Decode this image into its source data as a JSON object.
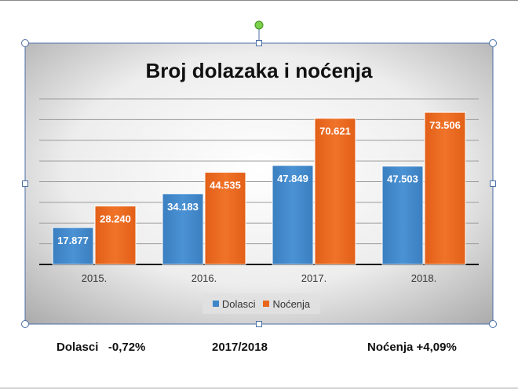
{
  "chart_data": {
    "type": "bar",
    "title": "Broj dolazaka i noćenja",
    "categories": [
      "2015.",
      "2016.",
      "2017.",
      "2018."
    ],
    "series": [
      {
        "name": "Dolasci",
        "color": "#3f86c8",
        "values": [
          17877,
          34183,
          47849,
          47503
        ],
        "labels": [
          "17.877",
          "34.183",
          "47.849",
          "47.503"
        ]
      },
      {
        "name": "Noćenja",
        "color": "#e8661c",
        "values": [
          28240,
          44535,
          70621,
          73506
        ],
        "labels": [
          "28.240",
          "44.535",
          "70.621",
          "73.506"
        ]
      }
    ],
    "ylim": [
      0,
      80000
    ],
    "grid": true,
    "legend": "bottom"
  },
  "captions": {
    "left": "Dolasci   -0,72%",
    "center": "2017/2018",
    "right": "Noćenja +4,09%"
  }
}
